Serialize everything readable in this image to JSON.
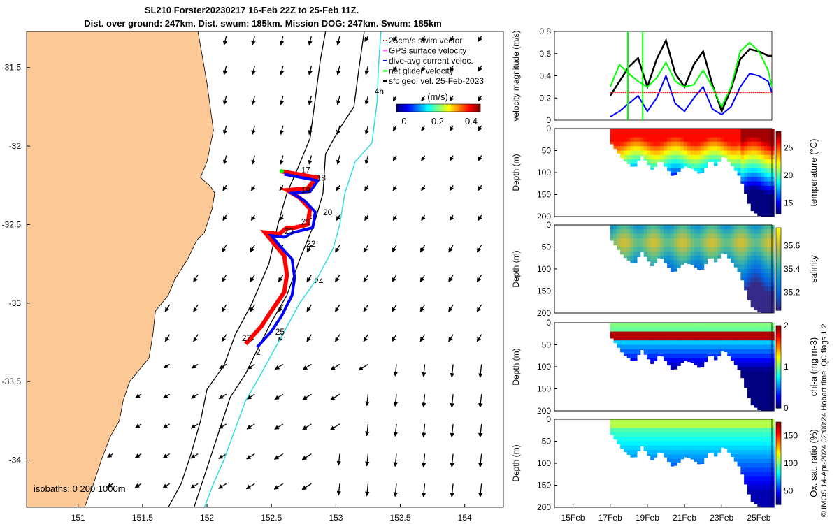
{
  "title_line1": "SL210 Forster20230217 16-Feb 22Z to 25-Feb 11Z.",
  "title_line2": "Dist. over ground: 247km. Dist. swum: 185km. Mission DOG: 247km. Swum: 185km",
  "footer_note": "© IMOS 14-Apr-2024 02:00:24 Hobart time. QC flags 1  2",
  "colors": {
    "land": "#fbc896",
    "track_red": "#ff0000",
    "track_blue": "#0000ff",
    "glider_green": "#00ff00",
    "isobath_cyan": "#33dddd",
    "isobath_black": "#000000"
  },
  "chart_data": [
    {
      "type": "scatter",
      "name": "map",
      "xlim": [
        150.6,
        154.3
      ],
      "ylim": [
        -34.3,
        -31.27
      ],
      "x_ticks": [
        151,
        151.5,
        152,
        152.5,
        153,
        153.5,
        154
      ],
      "x_tick_labels": [
        "151",
        "151.5",
        "152",
        "152.5",
        "153",
        "153.5",
        "154"
      ],
      "y_ticks": [
        -31.5,
        -32,
        -32.5,
        -33,
        -33.5,
        -34
      ],
      "y_tick_labels": [
        "-31.5",
        "-32",
        "-32.5",
        "-33",
        "-33.5",
        "-34"
      ],
      "legend": [
        "25cm/s swim vector",
        "GPS surface velocity",
        "dive-avg current veloc.",
        "net glider velocity",
        "sfc geo. vel. 25-Feb-2023"
      ],
      "colorbar": {
        "label": "(m/s)",
        "range": [
          0,
          0.5
        ],
        "ticks": [
          "0",
          "0.2",
          "0.4"
        ]
      },
      "isobaths_label": "isobaths: 0   200  1000m",
      "day_labels": [
        {
          "text": "17",
          "x": 152.73,
          "y": -32.17
        },
        {
          "text": "18",
          "x": 152.85,
          "y": -32.22
        },
        {
          "text": "19",
          "x": 152.73,
          "y": -32.3
        },
        {
          "text": "20",
          "x": 152.9,
          "y": -32.44
        },
        {
          "text": "21",
          "x": 152.73,
          "y": -32.5
        },
        {
          "text": "23",
          "x": 152.6,
          "y": -32.56
        },
        {
          "text": "22",
          "x": 152.77,
          "y": -32.64
        },
        {
          "text": "24",
          "x": 152.83,
          "y": -32.88
        },
        {
          "text": "25",
          "x": 152.53,
          "y": -33.2
        },
        {
          "text": "27",
          "x": 152.27,
          "y": -33.24
        },
        {
          "text": "2",
          "x": 152.38,
          "y": -33.33
        },
        {
          "text": "4h",
          "x": 153.3,
          "y": -31.67
        }
      ],
      "track": [
        [
          152.57,
          -32.16
        ],
        [
          152.85,
          -32.2
        ],
        [
          152.78,
          -32.27
        ],
        [
          152.62,
          -32.28
        ],
        [
          152.72,
          -32.33
        ],
        [
          152.8,
          -32.4
        ],
        [
          152.78,
          -32.5
        ],
        [
          152.68,
          -32.52
        ],
        [
          152.62,
          -32.52
        ],
        [
          152.56,
          -32.56
        ],
        [
          152.45,
          -32.55
        ],
        [
          152.52,
          -32.62
        ],
        [
          152.6,
          -32.7
        ],
        [
          152.62,
          -32.82
        ],
        [
          152.6,
          -32.93
        ],
        [
          152.5,
          -33.05
        ],
        [
          152.42,
          -33.15
        ],
        [
          152.3,
          -33.26
        ]
      ],
      "track_blue": [
        [
          152.6,
          -32.18
        ],
        [
          152.86,
          -32.22
        ],
        [
          152.8,
          -32.29
        ],
        [
          152.66,
          -32.3
        ],
        [
          152.76,
          -32.35
        ],
        [
          152.84,
          -32.42
        ],
        [
          152.82,
          -32.52
        ],
        [
          152.72,
          -32.54
        ],
        [
          152.67,
          -32.55
        ],
        [
          152.6,
          -32.58
        ],
        [
          152.5,
          -32.57
        ],
        [
          152.57,
          -32.64
        ],
        [
          152.66,
          -32.72
        ],
        [
          152.68,
          -32.84
        ],
        [
          152.66,
          -32.95
        ],
        [
          152.58,
          -33.08
        ],
        [
          152.5,
          -33.18
        ],
        [
          152.39,
          -33.28
        ]
      ],
      "isobath_black_a": [
        [
          152.92,
          -31.27
        ],
        [
          152.88,
          -31.45
        ],
        [
          152.84,
          -31.7
        ],
        [
          152.8,
          -31.95
        ],
        [
          152.7,
          -32.15
        ],
        [
          152.62,
          -32.3
        ],
        [
          152.55,
          -32.5
        ],
        [
          152.48,
          -32.75
        ],
        [
          152.35,
          -33
        ],
        [
          152.22,
          -33.2
        ],
        [
          152.13,
          -33.4
        ],
        [
          152.0,
          -33.55
        ],
        [
          151.95,
          -33.75
        ],
        [
          151.88,
          -33.95
        ],
        [
          151.8,
          -34.15
        ],
        [
          151.7,
          -34.3
        ]
      ],
      "isobath_black_b": [
        [
          153.22,
          -31.27
        ],
        [
          153.18,
          -31.5
        ],
        [
          153.14,
          -31.75
        ],
        [
          153.02,
          -31.9
        ],
        [
          152.92,
          -32.05
        ],
        [
          152.9,
          -32.3
        ],
        [
          152.83,
          -32.5
        ],
        [
          152.72,
          -32.72
        ],
        [
          152.62,
          -32.95
        ],
        [
          152.5,
          -33.12
        ],
        [
          152.4,
          -33.28
        ],
        [
          152.3,
          -33.45
        ],
        [
          152.18,
          -33.6
        ],
        [
          152.1,
          -33.8
        ],
        [
          152.02,
          -34.0
        ],
        [
          151.94,
          -34.2
        ],
        [
          151.9,
          -34.3
        ]
      ],
      "isobath_cyan": [
        [
          153.35,
          -31.27
        ],
        [
          153.33,
          -31.5
        ],
        [
          153.32,
          -31.72
        ],
        [
          153.3,
          -31.85
        ],
        [
          153.28,
          -31.98
        ],
        [
          153.15,
          -32.1
        ],
        [
          153.07,
          -32.3
        ],
        [
          153.03,
          -32.5
        ],
        [
          152.98,
          -32.65
        ],
        [
          152.85,
          -32.85
        ],
        [
          152.72,
          -33.0
        ],
        [
          152.62,
          -33.15
        ],
        [
          152.52,
          -33.3
        ],
        [
          152.4,
          -33.48
        ],
        [
          152.3,
          -33.62
        ],
        [
          152.22,
          -33.8
        ],
        [
          152.13,
          -34.0
        ],
        [
          152.05,
          -34.15
        ],
        [
          151.98,
          -34.3
        ]
      ],
      "coast": [
        [
          151.93,
          -31.27
        ],
        [
          152.0,
          -31.6
        ],
        [
          152.05,
          -31.9
        ],
        [
          152.0,
          -32.1
        ],
        [
          151.95,
          -32.2
        ],
        [
          152.03,
          -32.26
        ],
        [
          152.06,
          -32.3
        ],
        [
          152.04,
          -32.4
        ],
        [
          151.98,
          -32.55
        ],
        [
          151.92,
          -32.6
        ],
        [
          151.85,
          -32.72
        ],
        [
          151.75,
          -32.85
        ],
        [
          151.7,
          -32.95
        ],
        [
          151.6,
          -33.05
        ],
        [
          151.58,
          -33.2
        ],
        [
          151.55,
          -33.35
        ],
        [
          151.4,
          -33.5
        ],
        [
          151.35,
          -33.62
        ],
        [
          151.32,
          -33.75
        ],
        [
          151.25,
          -33.85
        ],
        [
          151.18,
          -34.0
        ],
        [
          151.12,
          -34.15
        ],
        [
          151.05,
          -34.3
        ]
      ]
    },
    {
      "type": "line",
      "name": "velocity",
      "ylabel": "velocity magnitude (m/s)",
      "xlim": [
        14,
        25.7
      ],
      "ylim": [
        0,
        0.8
      ],
      "y_ticks": [
        0,
        0.2,
        0.4,
        0.6,
        0.8
      ],
      "y_tick_labels": [
        "0",
        "0.2",
        "0.4",
        "0.6",
        "0.8"
      ],
      "series": [
        {
          "color": "#000000",
          "x": [
            17.0,
            17.5,
            18.0,
            18.5,
            19.0,
            19.5,
            20.0,
            20.5,
            21.0,
            21.5,
            22.0,
            22.5,
            23.0,
            23.5,
            24.0,
            24.5,
            25.0,
            25.5,
            25.7
          ],
          "values": [
            0.22,
            0.35,
            0.48,
            0.56,
            0.3,
            0.55,
            0.72,
            0.42,
            0.3,
            0.5,
            0.62,
            0.32,
            0.08,
            0.28,
            0.55,
            0.64,
            0.62,
            0.58,
            0.58
          ]
        },
        {
          "color": "#00ff00",
          "x": [
            17.0,
            17.5,
            18.0,
            18.5,
            19.0,
            19.5,
            20.0,
            20.5,
            21.0,
            21.5,
            22.0,
            22.5,
            23.0,
            23.5,
            24.0,
            24.5,
            25.0,
            25.5,
            25.7
          ],
          "values": [
            0.3,
            0.5,
            0.42,
            0.35,
            0.3,
            0.38,
            0.52,
            0.35,
            0.3,
            0.32,
            0.45,
            0.3,
            0.12,
            0.3,
            0.62,
            0.7,
            0.62,
            0.45,
            0.3
          ]
        },
        {
          "color": "#0000ff",
          "x": [
            17.0,
            17.5,
            18.0,
            18.5,
            19.0,
            19.5,
            20.0,
            20.5,
            21.0,
            21.5,
            22.0,
            22.5,
            23.0,
            23.5,
            24.0,
            24.5,
            25.0,
            25.5,
            25.7
          ],
          "values": [
            0.03,
            0.08,
            0.15,
            0.22,
            0.08,
            0.2,
            0.4,
            0.15,
            0.08,
            0.2,
            0.3,
            0.1,
            0.05,
            0.12,
            0.3,
            0.42,
            0.4,
            0.35,
            0.25
          ]
        },
        {
          "color": "#ff0000",
          "x": [
            17.0,
            25.7
          ],
          "values": [
            0.25,
            0.25
          ]
        }
      ]
    },
    {
      "type": "heatmap",
      "name": "temperature",
      "ylabel": "Depth (m)",
      "colorbar_label": "temperature (°C)",
      "ylim": [
        0,
        200
      ],
      "y_ticks": [
        0,
        50,
        100,
        150,
        200
      ],
      "colorbar_range": [
        13,
        28
      ],
      "colorbar_ticks": [
        15,
        20,
        25
      ]
    },
    {
      "type": "heatmap",
      "name": "salinity",
      "ylabel": "Depth (m)",
      "colorbar_label": "salinity",
      "ylim": [
        0,
        200
      ],
      "y_ticks": [
        0,
        50,
        100,
        150,
        200
      ],
      "colorbar_range": [
        35.05,
        35.75
      ],
      "colorbar_ticks": [
        35.2,
        35.4,
        35.6
      ]
    },
    {
      "type": "heatmap",
      "name": "chla",
      "ylabel": "Depth (m)",
      "colorbar_label": "chl-a (mg m-3)",
      "ylim": [
        0,
        200
      ],
      "y_ticks": [
        0,
        50,
        100,
        150,
        200
      ],
      "colorbar_range": [
        0,
        2
      ],
      "colorbar_ticks": [
        0,
        1,
        2
      ]
    },
    {
      "type": "heatmap",
      "name": "oxsat",
      "ylabel": "Depth (m)",
      "colorbar_label": "Ox. sat. ratio (%)",
      "ylim": [
        0,
        200
      ],
      "y_ticks": [
        0,
        50,
        100,
        150,
        200
      ],
      "colorbar_range": [
        25,
        175
      ],
      "colorbar_ticks": [
        50,
        100,
        150
      ],
      "x_ticks": [
        15,
        17,
        19,
        21,
        23,
        25
      ],
      "x_tick_labels": [
        "15Feb",
        "17Feb",
        "19Feb",
        "21Feb",
        "23Feb",
        "25Feb"
      ]
    }
  ]
}
